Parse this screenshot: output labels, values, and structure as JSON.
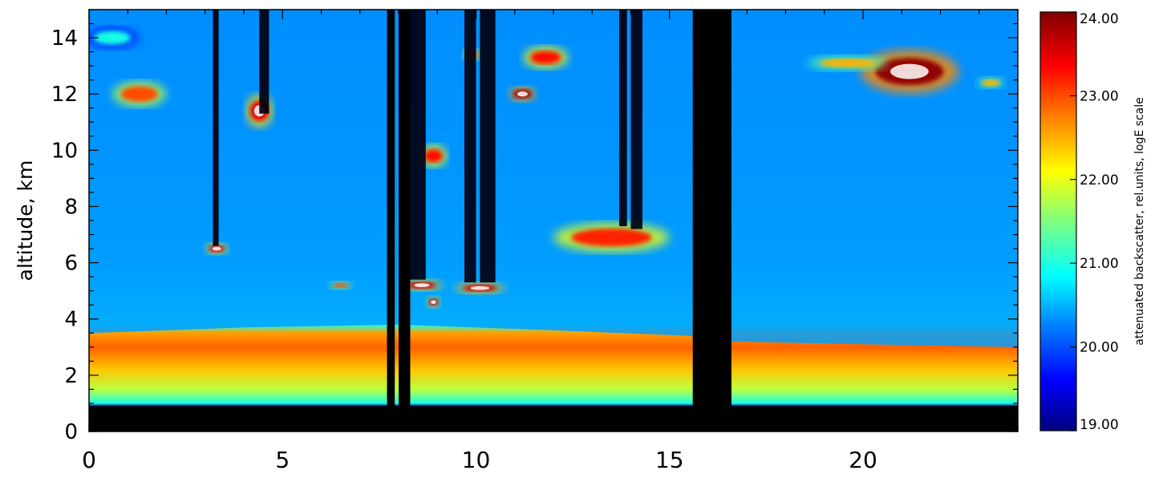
{
  "chart_data": {
    "type": "heatmap",
    "title": "",
    "xlabel": "",
    "ylabel": "altitude, km",
    "xlim": [
      0,
      24
    ],
    "ylim": [
      0,
      15
    ],
    "x_ticks": [
      0,
      5,
      10,
      15,
      20
    ],
    "y_ticks": [
      0,
      2,
      4,
      6,
      8,
      10,
      12,
      14
    ],
    "colorbar": {
      "label": "attenuated backscatter, rel.units, logE scale",
      "range": [
        19.0,
        24.0
      ],
      "ticks": [
        "19.00",
        "20.00",
        "21.00",
        "22.00",
        "23.00",
        "24.00"
      ],
      "colormap": [
        "#00007f",
        "#0000ff",
        "#007fff",
        "#00ffff",
        "#7fff7f",
        "#ffff00",
        "#ff7f00",
        "#ff0000",
        "#7f0000"
      ]
    },
    "background_profile": [
      {
        "alt": 0.0,
        "value": 19.0
      },
      {
        "alt": 0.9,
        "value": 19.0
      },
      {
        "alt": 1.0,
        "value": 21.0
      },
      {
        "alt": 1.5,
        "value": 21.8
      },
      {
        "alt": 2.2,
        "value": 22.4
      },
      {
        "alt": 3.0,
        "value": 22.9
      },
      {
        "alt": 3.5,
        "value": 22.6
      },
      {
        "alt": 3.8,
        "value": 21.0
      },
      {
        "alt": 6.0,
        "value": 20.4
      },
      {
        "alt": 10.0,
        "value": 20.1
      },
      {
        "alt": 15.0,
        "value": 19.9
      }
    ],
    "boundary_layer_top_km": [
      {
        "t": 0,
        "alt": 3.5
      },
      {
        "t": 4,
        "alt": 3.7
      },
      {
        "t": 8,
        "alt": 3.8
      },
      {
        "t": 12,
        "alt": 3.6
      },
      {
        "t": 15.5,
        "alt": 3.4
      },
      {
        "t": 16.6,
        "alt": 3.2
      },
      {
        "t": 20,
        "alt": 3.1
      },
      {
        "t": 24,
        "alt": 3.0
      }
    ],
    "data_gaps_hours": [
      [
        7.7,
        7.9
      ],
      [
        8.0,
        8.3
      ],
      [
        15.6,
        16.6
      ]
    ],
    "attenuated_columns": [
      {
        "t": 3.2,
        "w": 0.15,
        "bottom": 6.6
      },
      {
        "t": 4.4,
        "w": 0.25,
        "bottom": 11.3
      },
      {
        "t": 8.3,
        "w": 0.4,
        "bottom": 5.4
      },
      {
        "t": 9.7,
        "w": 0.3,
        "bottom": 5.3
      },
      {
        "t": 10.1,
        "w": 0.4,
        "bottom": 5.3
      },
      {
        "t": 13.7,
        "w": 0.2,
        "bottom": 7.3
      },
      {
        "t": 14.0,
        "w": 0.3,
        "bottom": 7.2
      }
    ],
    "clouds": [
      {
        "t": 1.3,
        "alt": 12.0,
        "w": 1.2,
        "h": 0.7,
        "value": 23.0
      },
      {
        "t": 4.4,
        "alt": 11.4,
        "w": 0.6,
        "h": 0.9,
        "value": 23.5
      },
      {
        "t": 3.3,
        "alt": 6.5,
        "w": 0.5,
        "h": 0.3,
        "value": 23.5
      },
      {
        "t": 8.9,
        "alt": 9.8,
        "w": 0.6,
        "h": 0.6,
        "value": 23.3
      },
      {
        "t": 11.2,
        "alt": 12.0,
        "w": 0.6,
        "h": 0.4,
        "value": 23.8
      },
      {
        "t": 11.8,
        "alt": 13.3,
        "w": 1.0,
        "h": 0.6,
        "value": 23.3
      },
      {
        "t": 9.9,
        "alt": 13.4,
        "w": 0.4,
        "h": 0.3,
        "value": 23.0
      },
      {
        "t": 8.6,
        "alt": 5.2,
        "w": 0.9,
        "h": 0.3,
        "value": 23.6
      },
      {
        "t": 10.1,
        "alt": 5.1,
        "w": 1.1,
        "h": 0.3,
        "value": 23.6
      },
      {
        "t": 8.9,
        "alt": 4.6,
        "w": 0.3,
        "h": 0.3,
        "value": 23.6
      },
      {
        "t": 6.5,
        "alt": 5.2,
        "w": 0.5,
        "h": 0.2,
        "value": 23.0
      },
      {
        "t": 13.5,
        "alt": 6.9,
        "w": 2.6,
        "h": 0.8,
        "value": 23.2
      },
      {
        "t": 21.2,
        "alt": 12.8,
        "w": 2.2,
        "h": 1.2,
        "value": 23.9
      },
      {
        "t": 19.6,
        "alt": 13.1,
        "w": 1.8,
        "h": 0.4,
        "value": 22.5
      },
      {
        "t": 23.3,
        "alt": 12.4,
        "w": 0.6,
        "h": 0.3,
        "value": 22.5
      },
      {
        "t": 0.6,
        "alt": 14.0,
        "w": 1.2,
        "h": 0.6,
        "value": 21.0
      }
    ]
  }
}
